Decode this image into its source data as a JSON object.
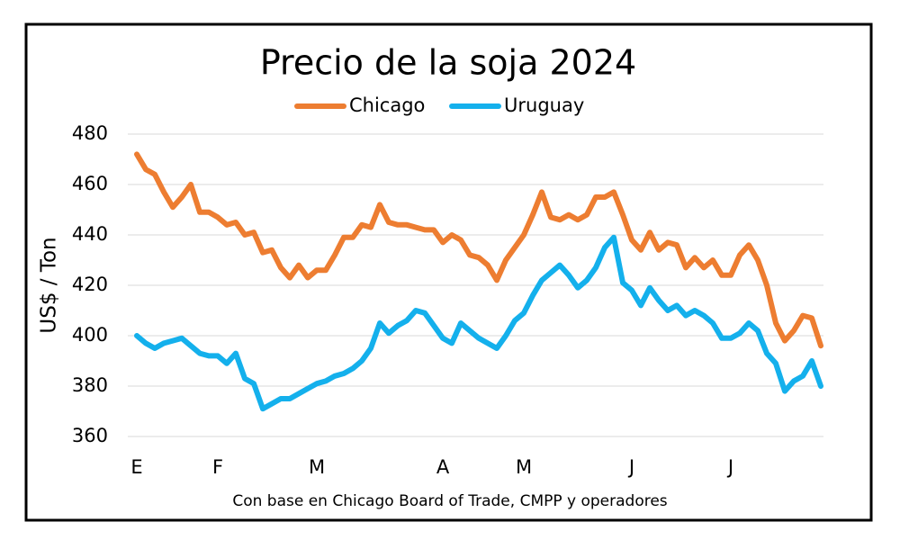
{
  "chart_data": {
    "type": "line",
    "title": "Precio de la soja 2024",
    "ylabel": "US$ / Ton",
    "footnote": "Con base en Chicago Board of Trade, CMPP y operadores",
    "categories": [
      "E",
      null,
      null,
      null,
      null,
      null,
      null,
      null,
      null,
      "F",
      null,
      null,
      null,
      null,
      null,
      null,
      null,
      null,
      null,
      null,
      "M",
      null,
      null,
      null,
      null,
      null,
      null,
      null,
      null,
      null,
      null,
      null,
      null,
      null,
      "A",
      null,
      null,
      null,
      null,
      null,
      null,
      null,
      null,
      "M",
      null,
      null,
      null,
      null,
      null,
      null,
      null,
      null,
      null,
      null,
      null,
      "J",
      null,
      null,
      null,
      null,
      null,
      null,
      null,
      null,
      null,
      null,
      "J",
      null,
      null,
      null,
      null,
      null,
      null,
      null,
      null,
      null,
      null
    ],
    "series": [
      {
        "name": "Chicago",
        "color": "#ed7d31",
        "values": [
          472,
          466,
          464,
          457,
          451,
          455,
          460,
          449,
          449,
          447,
          444,
          445,
          440,
          441,
          433,
          434,
          427,
          423,
          428,
          423,
          426,
          426,
          432,
          439,
          439,
          444,
          443,
          452,
          445,
          444,
          444,
          443,
          442,
          442,
          437,
          440,
          438,
          432,
          431,
          428,
          422,
          430,
          435,
          440,
          448,
          457,
          447,
          446,
          448,
          446,
          448,
          455,
          455,
          457,
          448,
          438,
          434,
          441,
          434,
          437,
          436,
          427,
          431,
          427,
          430,
          424,
          424,
          432,
          436,
          430,
          420,
          405,
          398,
          402,
          408,
          407,
          396
        ]
      },
      {
        "name": "Uruguay",
        "color": "#14b0ec",
        "values": [
          400,
          397,
          395,
          397,
          398,
          399,
          396,
          393,
          392,
          392,
          389,
          393,
          383,
          381,
          371,
          373,
          375,
          375,
          377,
          379,
          381,
          382,
          384,
          385,
          387,
          390,
          395,
          405,
          401,
          404,
          406,
          410,
          409,
          404,
          399,
          397,
          405,
          402,
          399,
          397,
          395,
          400,
          406,
          409,
          416,
          422,
          425,
          428,
          424,
          419,
          422,
          427,
          435,
          439,
          421,
          418,
          412,
          419,
          414,
          410,
          412,
          408,
          410,
          408,
          405,
          399,
          399,
          401,
          405,
          402,
          393,
          389,
          378,
          382,
          384,
          390,
          380
        ]
      }
    ],
    "ylim": [
      360,
      480
    ],
    "yticks": [
      360,
      380,
      400,
      420,
      440,
      460,
      480
    ],
    "grid": true,
    "legend": "top"
  }
}
